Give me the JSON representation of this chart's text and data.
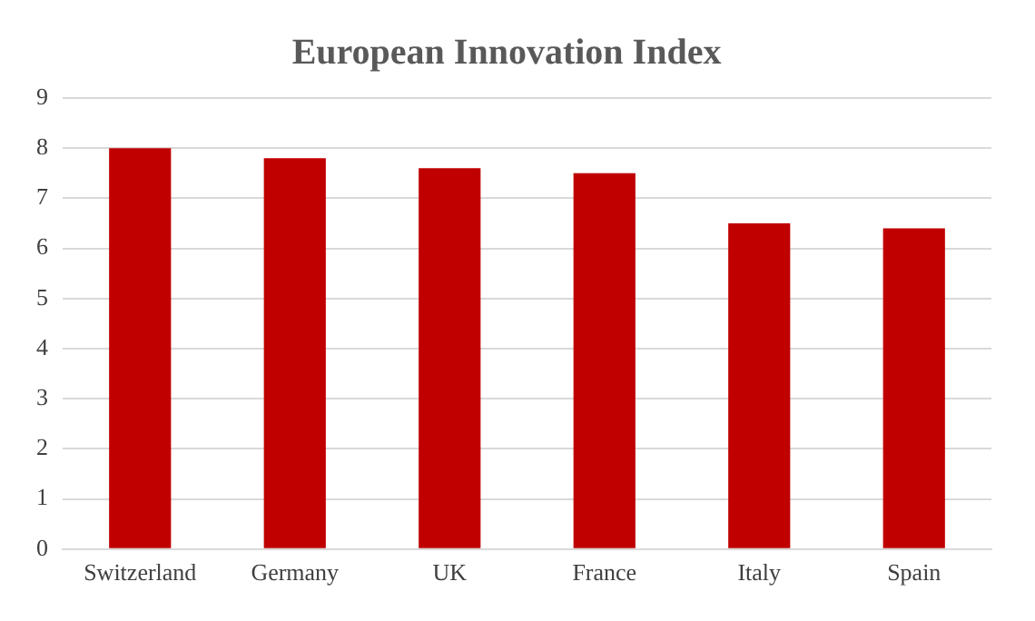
{
  "chart_data": {
    "type": "bar",
    "title": "European Innovation Index",
    "categories": [
      "Switzerland",
      "Germany",
      "UK",
      "France",
      "Italy",
      "Spain"
    ],
    "values": [
      8.0,
      7.8,
      7.6,
      7.5,
      6.5,
      6.4
    ],
    "color": "#c00000",
    "ylim": [
      0,
      9
    ],
    "yticks": [
      0,
      1,
      2,
      3,
      4,
      5,
      6,
      7,
      8,
      9
    ],
    "grid": "y",
    "legend": false
  }
}
